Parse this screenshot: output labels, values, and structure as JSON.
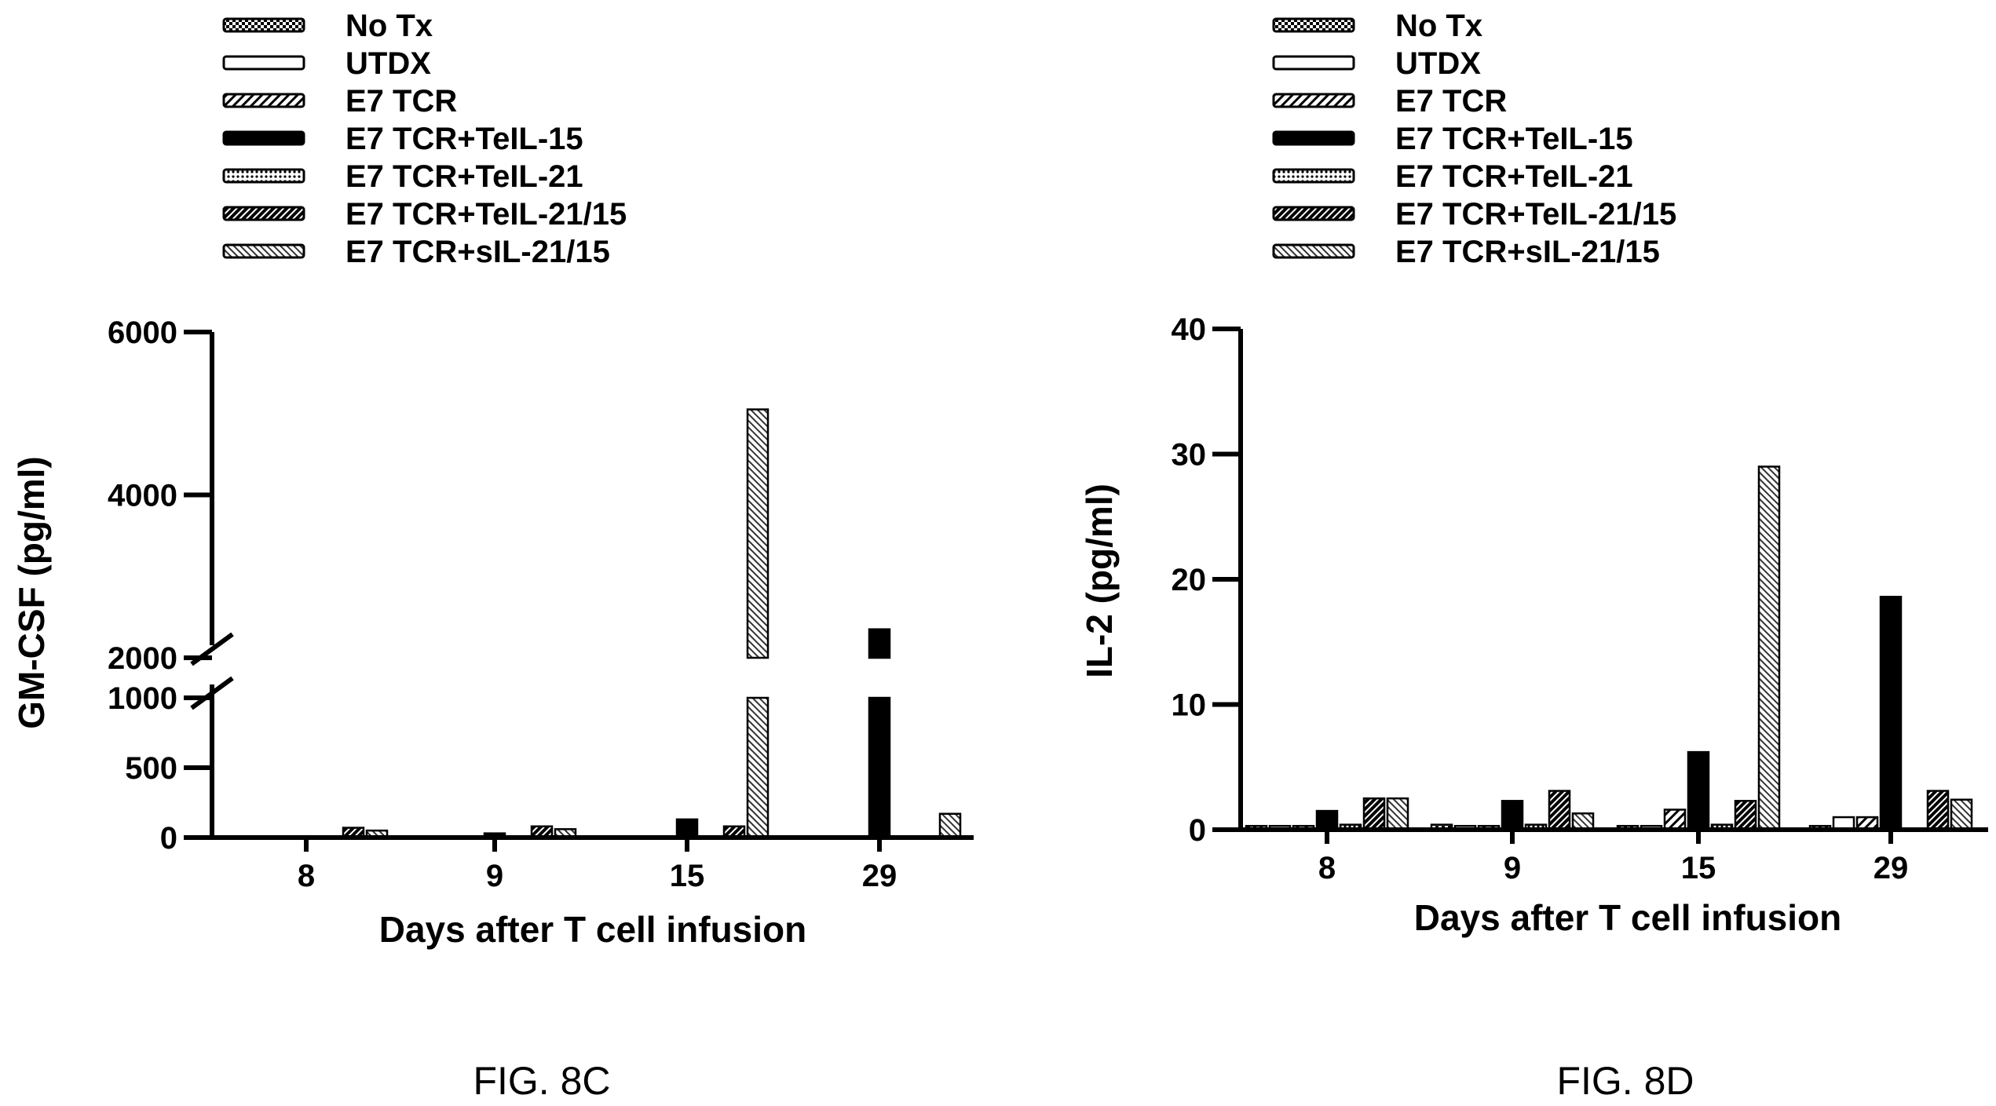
{
  "patterns": {
    "No Tx": "checker",
    "UTDX": "white",
    "E7 TCR": "hatch",
    "E7 TCR+TeIL-15": "solid",
    "E7 TCR+TeIL-21": "dots",
    "E7 TCR+TeIL-21/15": "dense",
    "E7 TCR+sIL-21/15": "fine"
  },
  "chart_data": [
    {
      "type": "bar",
      "caption": "FIG. 8C",
      "title": "",
      "xlabel": "Days after T cell infusion",
      "ylabel": "GM-CSF (pg/ml)",
      "categories": [
        "8",
        "9",
        "15",
        "29"
      ],
      "axis_break": {
        "lower": [
          0,
          1000
        ],
        "upper": [
          2000,
          6000
        ]
      },
      "yticks": [
        "0",
        "500",
        "1000",
        "2000",
        "4000",
        "6000"
      ],
      "legend_position": "top",
      "series": [
        {
          "name": "No Tx",
          "values": [
            0,
            0,
            0,
            0
          ]
        },
        {
          "name": "UTDX",
          "values": [
            0,
            0,
            0,
            0
          ]
        },
        {
          "name": "E7 TCR",
          "values": [
            0,
            0,
            0,
            0
          ]
        },
        {
          "name": "E7 TCR+TeIL-15",
          "values": [
            10,
            30,
            130,
            2350
          ]
        },
        {
          "name": "E7 TCR+TeIL-21",
          "values": [
            0,
            0,
            0,
            0
          ]
        },
        {
          "name": "E7 TCR+TeIL-21/15",
          "values": [
            70,
            80,
            80,
            0
          ]
        },
        {
          "name": "E7 TCR+sIL-21/15",
          "values": [
            50,
            60,
            5050,
            170
          ]
        }
      ]
    },
    {
      "type": "bar",
      "caption": "FIG. 8D",
      "title": "",
      "xlabel": "Days after T cell infusion",
      "ylabel": "IL-2 (pg/ml)",
      "categories": [
        "8",
        "9",
        "15",
        "29"
      ],
      "ylim": [
        0,
        40
      ],
      "yticks": [
        "0",
        "10",
        "20",
        "30",
        "40"
      ],
      "legend_position": "top",
      "series": [
        {
          "name": "No Tx",
          "values": [
            0.3,
            0.4,
            0.3,
            0.3
          ]
        },
        {
          "name": "UTDX",
          "values": [
            0.3,
            0.3,
            0.3,
            1.0
          ]
        },
        {
          "name": "E7 TCR",
          "values": [
            0.3,
            0.3,
            1.6,
            1.0
          ]
        },
        {
          "name": "E7 TCR+TeIL-15",
          "values": [
            1.5,
            2.3,
            6.2,
            18.6
          ]
        },
        {
          "name": "E7 TCR+TeIL-21",
          "values": [
            0.4,
            0.4,
            0.4,
            0
          ]
        },
        {
          "name": "E7 TCR+TeIL-21/15",
          "values": [
            2.5,
            3.1,
            2.3,
            3.1
          ]
        },
        {
          "name": "E7 TCR+sIL-21/15",
          "values": [
            2.5,
            1.3,
            29.0,
            2.4
          ]
        }
      ]
    }
  ]
}
